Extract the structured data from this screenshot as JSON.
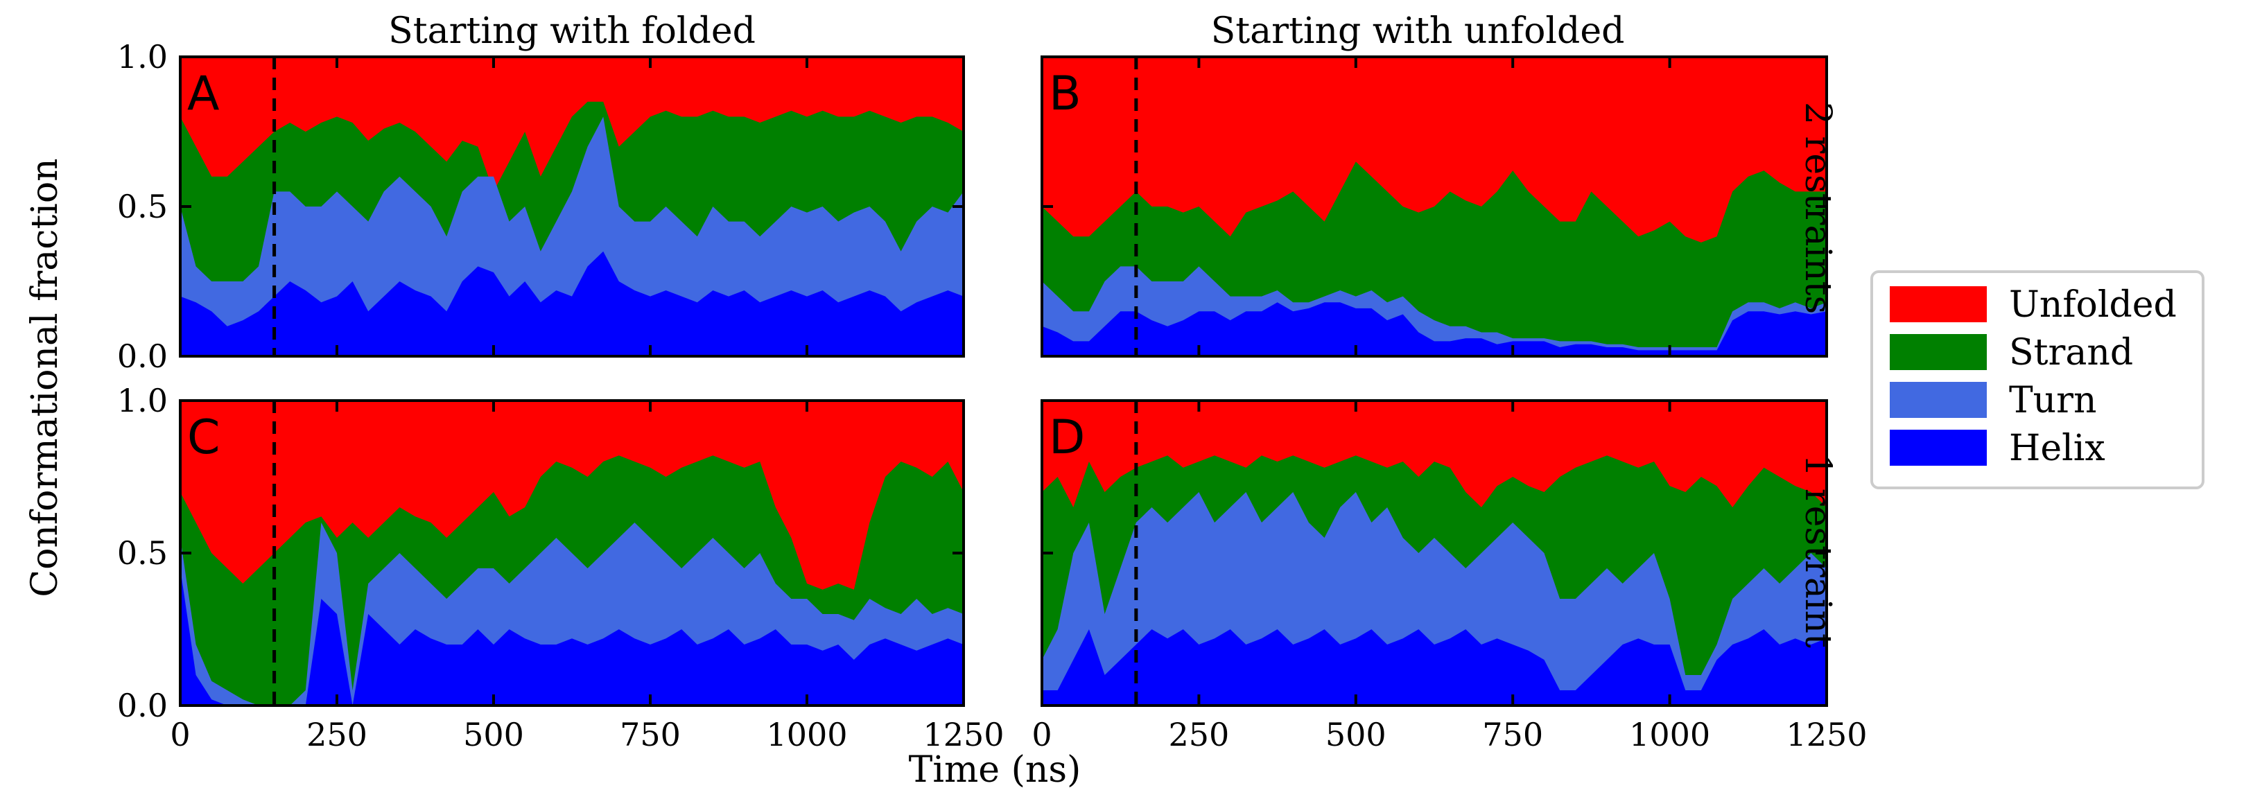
{
  "colors": {
    "Unfolded": "#ff0000",
    "Strand": "#008000",
    "Turn": "#4169e1",
    "Helix": "#0000ff"
  },
  "chart_data": {
    "type": "area",
    "stacked": true,
    "x_range": [
      0,
      1250
    ],
    "y_range": [
      0.0,
      1.0
    ],
    "x_ticks": [
      "0",
      "250",
      "500",
      "750",
      "1000",
      "1250"
    ],
    "y_ticks": [
      "0.0",
      "0.5",
      "1.0"
    ],
    "xlabel": "Time (ns)",
    "ylabel": "Conformational fraction",
    "column_titles": [
      "Starting with folded",
      "Starting with unfolded"
    ],
    "row_labels": [
      "2 restraints",
      "1 restraint"
    ],
    "dashed_line_x": 150,
    "legend": {
      "placement": "right",
      "entries": [
        "Unfolded",
        "Strand",
        "Turn",
        "Helix"
      ]
    },
    "x": [
      0,
      25,
      50,
      75,
      100,
      125,
      150,
      175,
      200,
      225,
      250,
      275,
      300,
      325,
      350,
      375,
      400,
      425,
      450,
      475,
      500,
      525,
      550,
      575,
      600,
      625,
      650,
      675,
      700,
      725,
      750,
      775,
      800,
      825,
      850,
      875,
      900,
      925,
      950,
      975,
      1000,
      1025,
      1050,
      1075,
      1100,
      1125,
      1150,
      1175,
      1200,
      1225,
      1250
    ],
    "panels": [
      {
        "letter": "A",
        "helix": [
          0.2,
          0.18,
          0.15,
          0.1,
          0.12,
          0.15,
          0.2,
          0.25,
          0.22,
          0.18,
          0.2,
          0.25,
          0.15,
          0.2,
          0.25,
          0.22,
          0.2,
          0.15,
          0.25,
          0.3,
          0.28,
          0.2,
          0.25,
          0.18,
          0.22,
          0.2,
          0.3,
          0.35,
          0.25,
          0.22,
          0.2,
          0.22,
          0.2,
          0.18,
          0.22,
          0.2,
          0.22,
          0.18,
          0.2,
          0.22,
          0.2,
          0.22,
          0.18,
          0.2,
          0.22,
          0.2,
          0.15,
          0.18,
          0.2,
          0.22,
          0.2
        ],
        "turn": [
          0.5,
          0.3,
          0.25,
          0.25,
          0.25,
          0.3,
          0.55,
          0.55,
          0.5,
          0.5,
          0.55,
          0.5,
          0.45,
          0.55,
          0.6,
          0.55,
          0.5,
          0.4,
          0.55,
          0.6,
          0.6,
          0.45,
          0.5,
          0.35,
          0.45,
          0.55,
          0.7,
          0.8,
          0.5,
          0.45,
          0.45,
          0.5,
          0.45,
          0.4,
          0.5,
          0.45,
          0.45,
          0.4,
          0.45,
          0.5,
          0.48,
          0.5,
          0.45,
          0.48,
          0.5,
          0.45,
          0.35,
          0.45,
          0.5,
          0.48,
          0.55
        ],
        "strand": [
          0.8,
          0.7,
          0.6,
          0.6,
          0.65,
          0.7,
          0.75,
          0.78,
          0.75,
          0.78,
          0.8,
          0.78,
          0.72,
          0.76,
          0.78,
          0.75,
          0.7,
          0.65,
          0.72,
          0.7,
          0.55,
          0.65,
          0.75,
          0.6,
          0.7,
          0.8,
          0.85,
          0.85,
          0.7,
          0.75,
          0.8,
          0.82,
          0.8,
          0.8,
          0.82,
          0.8,
          0.8,
          0.78,
          0.8,
          0.82,
          0.8,
          0.82,
          0.8,
          0.8,
          0.82,
          0.8,
          0.78,
          0.8,
          0.8,
          0.78,
          0.75
        ]
      },
      {
        "letter": "B",
        "helix": [
          0.1,
          0.08,
          0.05,
          0.05,
          0.1,
          0.15,
          0.15,
          0.12,
          0.1,
          0.12,
          0.15,
          0.15,
          0.12,
          0.15,
          0.15,
          0.18,
          0.15,
          0.16,
          0.18,
          0.18,
          0.16,
          0.16,
          0.12,
          0.14,
          0.08,
          0.05,
          0.05,
          0.06,
          0.06,
          0.04,
          0.05,
          0.05,
          0.05,
          0.03,
          0.04,
          0.04,
          0.03,
          0.03,
          0.02,
          0.02,
          0.02,
          0.02,
          0.02,
          0.02,
          0.12,
          0.15,
          0.15,
          0.14,
          0.15,
          0.14,
          0.15
        ],
        "turn": [
          0.25,
          0.2,
          0.15,
          0.15,
          0.25,
          0.3,
          0.3,
          0.25,
          0.25,
          0.25,
          0.3,
          0.25,
          0.2,
          0.2,
          0.2,
          0.22,
          0.18,
          0.18,
          0.2,
          0.22,
          0.2,
          0.22,
          0.18,
          0.2,
          0.15,
          0.12,
          0.1,
          0.1,
          0.08,
          0.08,
          0.06,
          0.06,
          0.06,
          0.05,
          0.05,
          0.05,
          0.04,
          0.04,
          0.03,
          0.03,
          0.03,
          0.03,
          0.03,
          0.03,
          0.15,
          0.18,
          0.18,
          0.16,
          0.18,
          0.16,
          0.18
        ],
        "strand": [
          0.5,
          0.45,
          0.4,
          0.4,
          0.45,
          0.5,
          0.55,
          0.5,
          0.5,
          0.48,
          0.5,
          0.45,
          0.4,
          0.48,
          0.5,
          0.52,
          0.55,
          0.5,
          0.45,
          0.55,
          0.65,
          0.6,
          0.55,
          0.5,
          0.48,
          0.5,
          0.55,
          0.52,
          0.5,
          0.55,
          0.62,
          0.55,
          0.5,
          0.45,
          0.45,
          0.55,
          0.5,
          0.45,
          0.4,
          0.42,
          0.45,
          0.4,
          0.38,
          0.4,
          0.55,
          0.6,
          0.62,
          0.58,
          0.55,
          0.55,
          0.55
        ]
      },
      {
        "letter": "C",
        "helix": [
          0.45,
          0.1,
          0.02,
          0.0,
          0.0,
          0.0,
          0.0,
          0.0,
          0.0,
          0.35,
          0.3,
          0.0,
          0.3,
          0.25,
          0.2,
          0.25,
          0.22,
          0.2,
          0.2,
          0.25,
          0.2,
          0.25,
          0.22,
          0.2,
          0.2,
          0.22,
          0.2,
          0.22,
          0.25,
          0.22,
          0.2,
          0.22,
          0.25,
          0.2,
          0.22,
          0.25,
          0.2,
          0.22,
          0.25,
          0.2,
          0.2,
          0.18,
          0.2,
          0.15,
          0.2,
          0.22,
          0.2,
          0.18,
          0.2,
          0.22,
          0.2
        ],
        "turn": [
          0.55,
          0.2,
          0.08,
          0.05,
          0.02,
          0.0,
          0.0,
          0.0,
          0.05,
          0.6,
          0.5,
          0.05,
          0.4,
          0.45,
          0.5,
          0.45,
          0.4,
          0.35,
          0.4,
          0.45,
          0.45,
          0.4,
          0.45,
          0.5,
          0.55,
          0.5,
          0.45,
          0.5,
          0.55,
          0.6,
          0.55,
          0.5,
          0.45,
          0.5,
          0.55,
          0.5,
          0.45,
          0.5,
          0.4,
          0.35,
          0.35,
          0.3,
          0.3,
          0.28,
          0.35,
          0.32,
          0.3,
          0.35,
          0.3,
          0.32,
          0.3
        ],
        "strand": [
          0.7,
          0.6,
          0.5,
          0.45,
          0.4,
          0.45,
          0.5,
          0.55,
          0.6,
          0.62,
          0.55,
          0.6,
          0.55,
          0.6,
          0.65,
          0.62,
          0.6,
          0.55,
          0.6,
          0.65,
          0.7,
          0.62,
          0.65,
          0.75,
          0.8,
          0.78,
          0.75,
          0.8,
          0.82,
          0.8,
          0.78,
          0.75,
          0.78,
          0.8,
          0.82,
          0.8,
          0.78,
          0.8,
          0.65,
          0.55,
          0.4,
          0.38,
          0.4,
          0.38,
          0.6,
          0.75,
          0.8,
          0.78,
          0.75,
          0.8,
          0.7
        ]
      },
      {
        "letter": "D",
        "helix": [
          0.05,
          0.05,
          0.15,
          0.25,
          0.1,
          0.15,
          0.2,
          0.25,
          0.22,
          0.25,
          0.2,
          0.22,
          0.25,
          0.2,
          0.22,
          0.25,
          0.2,
          0.22,
          0.25,
          0.2,
          0.22,
          0.25,
          0.2,
          0.22,
          0.25,
          0.2,
          0.22,
          0.25,
          0.2,
          0.22,
          0.2,
          0.18,
          0.15,
          0.05,
          0.05,
          0.1,
          0.15,
          0.2,
          0.22,
          0.2,
          0.2,
          0.05,
          0.05,
          0.15,
          0.2,
          0.22,
          0.25,
          0.2,
          0.22,
          0.2,
          0.22
        ],
        "turn": [
          0.15,
          0.25,
          0.5,
          0.6,
          0.3,
          0.45,
          0.6,
          0.65,
          0.6,
          0.65,
          0.7,
          0.6,
          0.65,
          0.7,
          0.6,
          0.65,
          0.7,
          0.6,
          0.55,
          0.65,
          0.7,
          0.6,
          0.65,
          0.55,
          0.5,
          0.55,
          0.5,
          0.45,
          0.5,
          0.55,
          0.6,
          0.55,
          0.5,
          0.35,
          0.35,
          0.4,
          0.45,
          0.4,
          0.45,
          0.5,
          0.35,
          0.1,
          0.1,
          0.2,
          0.35,
          0.4,
          0.45,
          0.4,
          0.45,
          0.5,
          0.45
        ],
        "strand": [
          0.7,
          0.75,
          0.65,
          0.8,
          0.7,
          0.75,
          0.78,
          0.8,
          0.82,
          0.78,
          0.8,
          0.82,
          0.8,
          0.78,
          0.82,
          0.8,
          0.82,
          0.8,
          0.78,
          0.8,
          0.82,
          0.8,
          0.78,
          0.8,
          0.75,
          0.8,
          0.78,
          0.7,
          0.65,
          0.72,
          0.75,
          0.72,
          0.7,
          0.75,
          0.78,
          0.8,
          0.82,
          0.8,
          0.78,
          0.8,
          0.72,
          0.7,
          0.75,
          0.72,
          0.65,
          0.72,
          0.78,
          0.75,
          0.72,
          0.7,
          0.65
        ]
      }
    ]
  }
}
